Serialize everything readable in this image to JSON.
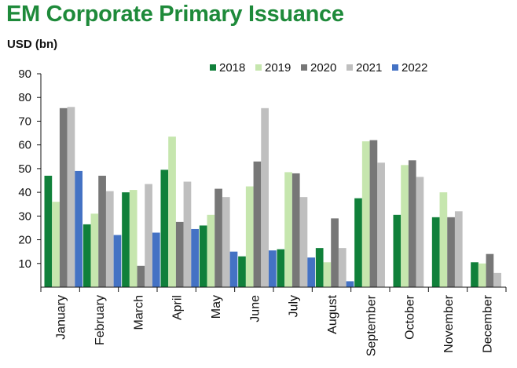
{
  "title": "EM Corporate Primary Issuance",
  "unit_label": "USD (bn)",
  "chart_data": {
    "type": "bar",
    "title": "EM Corporate Primary Issuance",
    "ylabel": "USD (bn)",
    "xlabel": "",
    "ylim": [
      0,
      90
    ],
    "yticks": [
      10,
      20,
      30,
      40,
      50,
      60,
      70,
      80,
      90
    ],
    "grid": false,
    "legend_position": "top-right",
    "categories": [
      "January",
      "February",
      "March",
      "April",
      "May",
      "June",
      "July",
      "August",
      "September",
      "October",
      "November",
      "December"
    ],
    "series": [
      {
        "name": "2018",
        "color": "#10803a",
        "values": [
          47,
          26.5,
          40,
          49.5,
          26,
          13,
          16,
          16.5,
          37.5,
          30.5,
          29.5,
          10.5
        ]
      },
      {
        "name": "2019",
        "color": "#c6e6ae",
        "values": [
          36,
          31,
          41,
          63.5,
          30.5,
          42.5,
          48.5,
          10.5,
          61.5,
          51.5,
          40,
          10
        ]
      },
      {
        "name": "2020",
        "color": "#777777",
        "values": [
          75.5,
          47,
          9,
          27.5,
          41.5,
          53,
          48,
          29,
          62,
          53.5,
          29.5,
          14
        ]
      },
      {
        "name": "2021",
        "color": "#bfbfbf",
        "values": [
          76,
          40.5,
          43.5,
          44.5,
          38,
          75.5,
          38,
          16.5,
          52.5,
          46.5,
          32,
          6
        ]
      },
      {
        "name": "2022",
        "color": "#4472c4",
        "values": [
          49,
          22,
          23,
          24.5,
          15,
          15.5,
          12.5,
          2.5,
          null,
          null,
          null,
          null
        ]
      }
    ]
  }
}
